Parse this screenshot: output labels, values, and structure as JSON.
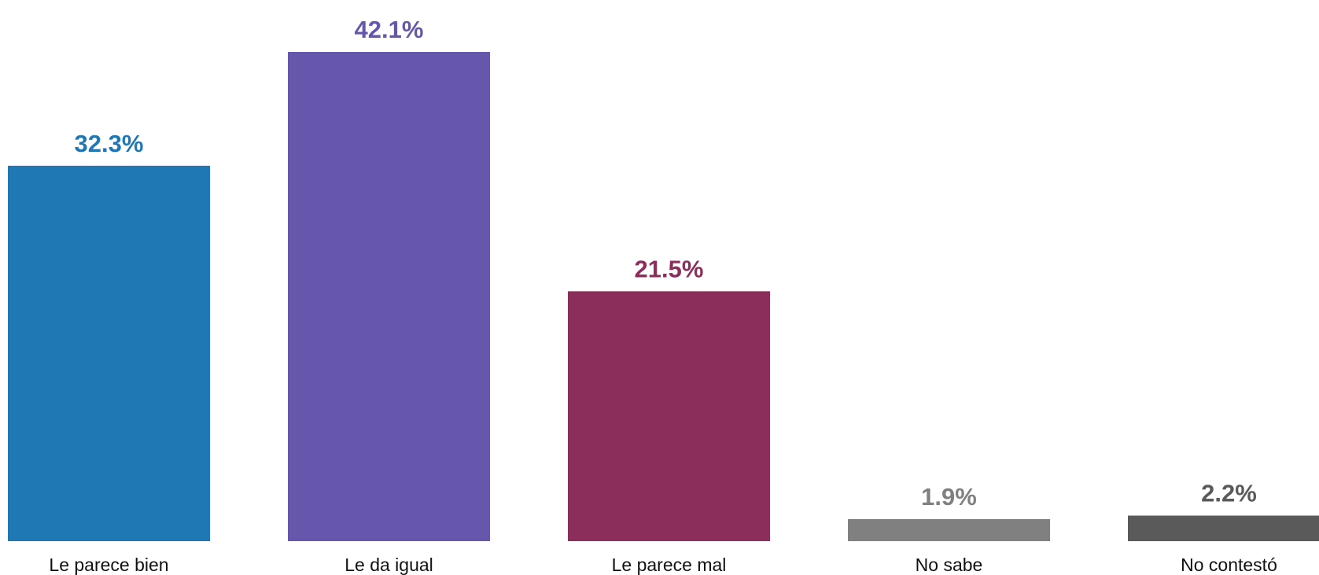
{
  "chart_data": {
    "type": "bar",
    "categories": [
      "Le parece bien",
      "Le da igual",
      "Le parece mal",
      "No sabe",
      "No contestó"
    ],
    "values": [
      32.3,
      42.1,
      21.5,
      1.9,
      2.2
    ],
    "value_labels": [
      "32.3%",
      "42.1%",
      "21.5%",
      "1.9%",
      "2.2%"
    ],
    "colors": [
      "#1f77b4",
      "#6657ad",
      "#8c2e5b",
      "#808080",
      "#5a5a5a"
    ],
    "title": "",
    "xlabel": "",
    "ylabel": "",
    "ylim": [
      0,
      42.1
    ],
    "grid": false,
    "legend": "none"
  }
}
